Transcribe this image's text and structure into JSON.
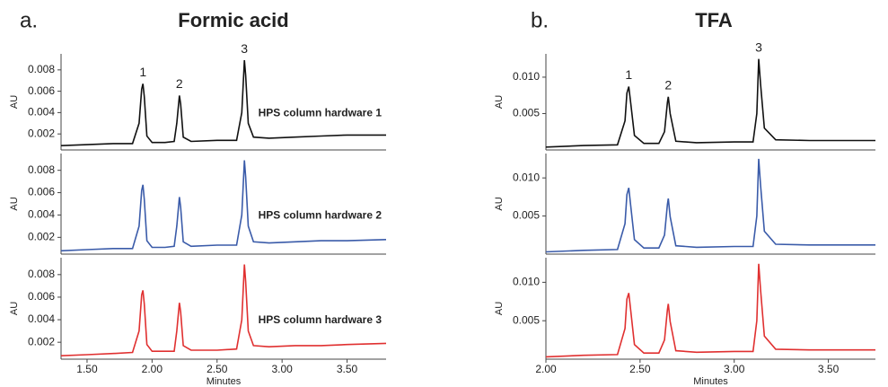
{
  "chart_data": [
    {
      "type": "line",
      "label": "a.",
      "title": "Formic acid",
      "xlabel": "Minutes",
      "xlim": [
        1.3,
        3.8
      ],
      "xticks": [
        {
          "value": 1.5,
          "label": "1.50"
        },
        {
          "value": 2.0,
          "label": "2.00"
        },
        {
          "value": 2.5,
          "label": "2.50"
        },
        {
          "value": 3.0,
          "label": "3.00"
        },
        {
          "value": 3.5,
          "label": "3.50"
        }
      ],
      "x": [
        1.3,
        1.5,
        1.7,
        1.85,
        1.9,
        1.92,
        1.93,
        1.94,
        1.96,
        2.0,
        2.1,
        2.17,
        2.19,
        2.21,
        2.22,
        2.24,
        2.3,
        2.5,
        2.65,
        2.69,
        2.71,
        2.72,
        2.74,
        2.78,
        2.9,
        3.1,
        3.3,
        3.5,
        3.8
      ],
      "annotations": [
        {
          "text": "1",
          "x": 1.93
        },
        {
          "text": "2",
          "x": 2.21
        },
        {
          "text": "3",
          "x": 2.71
        }
      ],
      "panels": [
        {
          "ylabel": "AU",
          "ylim": [
            0.0005,
            0.0095
          ],
          "yticks": [
            0.002,
            0.004,
            0.006,
            0.008
          ],
          "series": [
            {
              "name": "HPS column hardware 1",
              "color": "#111111",
              "values": [
                0.0009,
                0.001,
                0.0011,
                0.0011,
                0.003,
                0.0062,
                0.0067,
                0.0055,
                0.0018,
                0.0012,
                0.0012,
                0.0013,
                0.003,
                0.0056,
                0.0048,
                0.0017,
                0.0013,
                0.0014,
                0.0014,
                0.004,
                0.0089,
                0.0075,
                0.003,
                0.0017,
                0.0016,
                0.0017,
                0.0018,
                0.0019,
                0.0019
              ]
            }
          ]
        },
        {
          "ylabel": "AU",
          "ylim": [
            0.0005,
            0.0095
          ],
          "yticks": [
            0.002,
            0.004,
            0.006,
            0.008
          ],
          "series": [
            {
              "name": "HPS column hardware 2",
              "color": "#3a5ba9",
              "values": [
                0.0008,
                0.0009,
                0.001,
                0.001,
                0.003,
                0.0062,
                0.0067,
                0.0054,
                0.0017,
                0.0011,
                0.0011,
                0.0012,
                0.003,
                0.0056,
                0.0047,
                0.0016,
                0.0012,
                0.0013,
                0.0013,
                0.004,
                0.0089,
                0.0074,
                0.003,
                0.0016,
                0.0015,
                0.0016,
                0.0017,
                0.0017,
                0.0018
              ]
            }
          ]
        },
        {
          "ylabel": "AU",
          "ylim": [
            0.0005,
            0.0095
          ],
          "yticks": [
            0.002,
            0.004,
            0.006,
            0.008
          ],
          "series": [
            {
              "name": "HPS column hardware 3",
              "color": "#e03030",
              "values": [
                0.0008,
                0.0009,
                0.001,
                0.0011,
                0.003,
                0.0062,
                0.0066,
                0.0054,
                0.0018,
                0.0012,
                0.0012,
                0.0012,
                0.003,
                0.0055,
                0.0047,
                0.0017,
                0.0013,
                0.0013,
                0.0014,
                0.004,
                0.0089,
                0.0074,
                0.003,
                0.0017,
                0.0016,
                0.0017,
                0.0017,
                0.0018,
                0.0019
              ]
            }
          ]
        }
      ]
    },
    {
      "type": "line",
      "label": "b.",
      "title": "TFA",
      "xlabel": "Minutes",
      "xlim": [
        2.0,
        3.75
      ],
      "xticks": [
        {
          "value": 2.0,
          "label": "2.00"
        },
        {
          "value": 2.5,
          "label": "2.50"
        },
        {
          "value": 3.0,
          "label": "3.00"
        },
        {
          "value": 3.5,
          "label": "3.50"
        }
      ],
      "x": [
        2.0,
        2.2,
        2.38,
        2.42,
        2.43,
        2.44,
        2.45,
        2.47,
        2.52,
        2.6,
        2.63,
        2.645,
        2.65,
        2.66,
        2.69,
        2.8,
        3.0,
        3.1,
        3.12,
        3.13,
        3.14,
        3.16,
        3.22,
        3.4,
        3.6,
        3.75
      ],
      "annotations": [
        {
          "text": "1",
          "x": 2.44
        },
        {
          "text": "2",
          "x": 2.65
        },
        {
          "text": "3",
          "x": 3.13
        }
      ],
      "panels": [
        {
          "ylabel": "AU",
          "ylim": [
            0,
            0.0132
          ],
          "yticks": [
            0.005,
            {
              "value": 0.01,
              "label": "0.010"
            }
          ],
          "series": [
            {
              "color": "#111111",
              "values": [
                0.0004,
                0.0006,
                0.0007,
                0.004,
                0.0078,
                0.0087,
                0.0065,
                0.002,
                0.0009,
                0.0009,
                0.0025,
                0.0065,
                0.0073,
                0.005,
                0.0012,
                0.001,
                0.0011,
                0.0011,
                0.005,
                0.0125,
                0.009,
                0.003,
                0.0014,
                0.0013,
                0.0013,
                0.0013
              ]
            }
          ]
        },
        {
          "ylabel": "AU",
          "ylim": [
            0,
            0.0132
          ],
          "yticks": [
            0.005,
            {
              "value": 0.01,
              "label": "0.010"
            }
          ],
          "series": [
            {
              "color": "#3a5ba9",
              "values": [
                0.0003,
                0.0005,
                0.0006,
                0.004,
                0.0078,
                0.0087,
                0.0064,
                0.0019,
                0.0008,
                0.0008,
                0.0025,
                0.0065,
                0.0073,
                0.0049,
                0.0011,
                0.0009,
                0.001,
                0.001,
                0.005,
                0.0125,
                0.009,
                0.003,
                0.0013,
                0.0012,
                0.0012,
                0.0012
              ]
            }
          ]
        },
        {
          "ylabel": "AU",
          "ylim": [
            0,
            0.0132
          ],
          "yticks": [
            0.005,
            {
              "value": 0.01,
              "label": "0.010"
            }
          ],
          "series": [
            {
              "color": "#e03030",
              "values": [
                0.0003,
                0.0005,
                0.0006,
                0.004,
                0.0078,
                0.0086,
                0.0064,
                0.0019,
                0.0008,
                0.0008,
                0.0025,
                0.0064,
                0.0072,
                0.0049,
                0.0011,
                0.0009,
                0.001,
                0.001,
                0.005,
                0.0124,
                0.009,
                0.003,
                0.0013,
                0.0012,
                0.0012,
                0.0012
              ]
            }
          ]
        }
      ]
    }
  ]
}
